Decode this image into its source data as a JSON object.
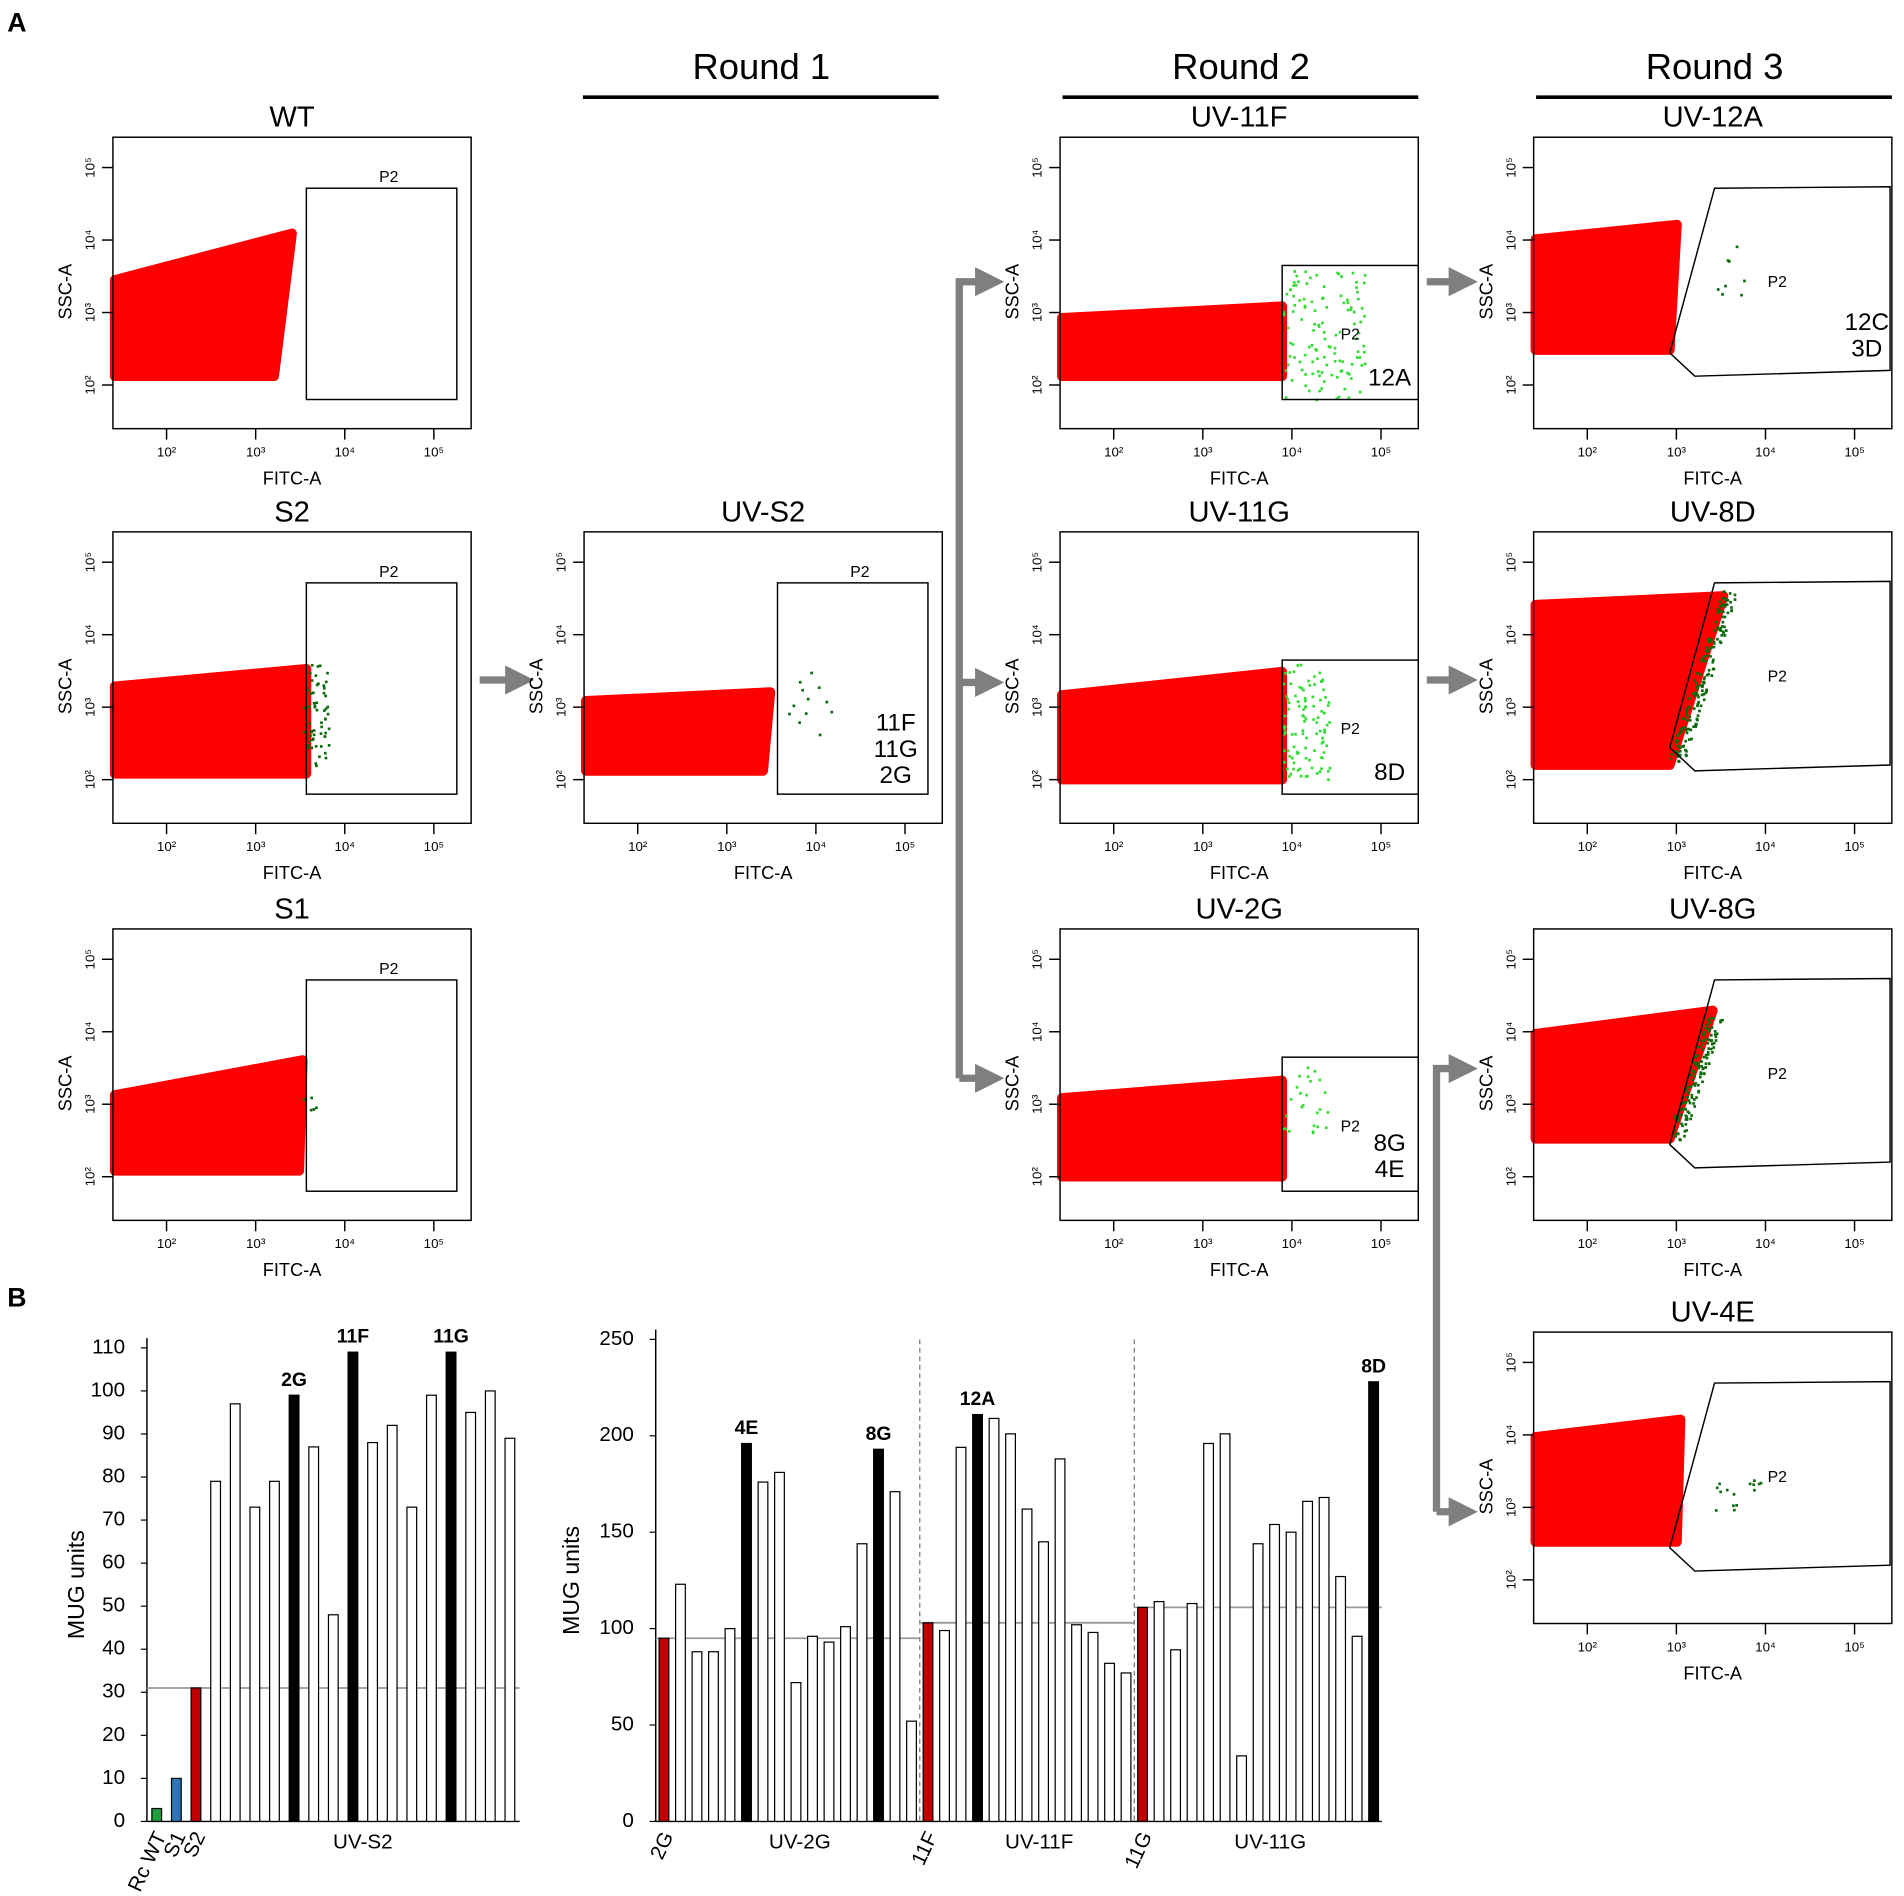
{
  "panel_labels": [
    "A",
    "B"
  ],
  "rounds": [
    "Round 1",
    "Round 2",
    "Round 3"
  ],
  "flow": {
    "xlabel": "FITC-A",
    "ylabel": "SSC-A",
    "gate_label": "P2",
    "scale": "log",
    "lim": [
      25,
      262144
    ],
    "ticks": [
      {
        "value": 100,
        "label": "10²"
      },
      {
        "value": 1000,
        "label": "10³"
      },
      {
        "value": 10000,
        "label": "10⁴"
      },
      {
        "value": 100000,
        "label": "10⁵"
      }
    ],
    "panels": [
      {
        "title": "WT"
      },
      {
        "title": "S2"
      },
      {
        "title": "S1"
      },
      {
        "title": "UV-S2",
        "annotation": [
          "11F",
          "11G",
          "2G"
        ]
      },
      {
        "title": "UV-11F",
        "annotation": [
          "12A"
        ]
      },
      {
        "title": "UV-11G",
        "annotation": [
          "8D"
        ]
      },
      {
        "title": "UV-2G",
        "annotation": [
          "8G",
          "4E"
        ]
      },
      {
        "title": "UV-12A",
        "annotation": [
          "12C",
          "3D"
        ]
      },
      {
        "title": "UV-8D"
      },
      {
        "title": "UV-8G"
      },
      {
        "title": "UV-4E"
      }
    ]
  },
  "chart_data": [
    {
      "type": "bar",
      "ylabel": "MUG units",
      "ylim": [
        0,
        110
      ],
      "yticks": [
        0,
        10,
        20,
        30,
        40,
        50,
        60,
        70,
        80,
        90,
        100,
        110
      ],
      "reference_line": 31,
      "group_label": "UV-S2",
      "categories": [
        "Rc WT",
        "S1",
        "S2",
        null,
        null,
        null,
        null,
        null,
        null,
        null,
        null,
        null,
        null,
        null,
        null,
        null,
        null,
        null,
        null
      ],
      "values": [
        3,
        10,
        31,
        79,
        97,
        73,
        79,
        99,
        87,
        48,
        109,
        88,
        92,
        73,
        99,
        109,
        95,
        100,
        89
      ],
      "colors": [
        "#1e9e3c",
        "#2e75b6",
        "#c00000",
        "#ffffff",
        "#ffffff",
        "#ffffff",
        "#ffffff",
        "#000000",
        "#ffffff",
        "#ffffff",
        "#000000",
        "#ffffff",
        "#ffffff",
        "#ffffff",
        "#ffffff",
        "#000000",
        "#ffffff",
        "#ffffff",
        "#ffffff"
      ],
      "bar_labels": [
        null,
        null,
        null,
        null,
        null,
        null,
        null,
        "2G",
        null,
        null,
        "11F",
        null,
        null,
        null,
        null,
        "11G",
        null,
        null,
        null
      ]
    },
    {
      "type": "grouped_bar",
      "ylabel": "MUG units",
      "ylim": [
        0,
        250
      ],
      "yticks": [
        0,
        50,
        100,
        150,
        200,
        250
      ],
      "groups": [
        {
          "label": "UV-2G",
          "reference_line": 95,
          "categories": [
            "2G",
            null,
            null,
            null,
            null,
            null,
            null,
            null,
            null,
            null,
            null,
            null,
            null,
            null,
            null,
            null
          ],
          "values": [
            95,
            123,
            88,
            88,
            100,
            196,
            176,
            181,
            72,
            96,
            93,
            101,
            144,
            193,
            171,
            52
          ],
          "colors": [
            "#c00000",
            "#ffffff",
            "#ffffff",
            "#ffffff",
            "#ffffff",
            "#000000",
            "#ffffff",
            "#ffffff",
            "#ffffff",
            "#ffffff",
            "#ffffff",
            "#ffffff",
            "#ffffff",
            "#000000",
            "#ffffff",
            "#ffffff"
          ],
          "bar_labels": [
            null,
            null,
            null,
            null,
            null,
            "4E",
            null,
            null,
            null,
            null,
            null,
            null,
            null,
            "8G",
            null,
            null
          ]
        },
        {
          "label": "UV-11F",
          "reference_line": 103,
          "categories": [
            "11F",
            null,
            null,
            null,
            null,
            null,
            null,
            null,
            null,
            null,
            null,
            null,
            null
          ],
          "values": [
            103,
            99,
            194,
            211,
            209,
            201,
            162,
            145,
            188,
            102,
            98,
            82,
            77
          ],
          "colors": [
            "#c00000",
            "#ffffff",
            "#ffffff",
            "#000000",
            "#ffffff",
            "#ffffff",
            "#ffffff",
            "#ffffff",
            "#ffffff",
            "#ffffff",
            "#ffffff",
            "#ffffff",
            "#ffffff"
          ],
          "bar_labels": [
            null,
            null,
            null,
            "12A",
            null,
            null,
            null,
            null,
            null,
            null,
            null,
            null,
            null
          ]
        },
        {
          "label": "UV-11G",
          "reference_line": 111,
          "categories": [
            "11G",
            null,
            null,
            null,
            null,
            null,
            null,
            null,
            null,
            null,
            null,
            null,
            null,
            null,
            null
          ],
          "values": [
            111,
            114,
            89,
            113,
            196,
            201,
            34,
            144,
            154,
            150,
            166,
            168,
            127,
            96,
            228
          ],
          "colors": [
            "#c00000",
            "#ffffff",
            "#ffffff",
            "#ffffff",
            "#ffffff",
            "#ffffff",
            "#ffffff",
            "#ffffff",
            "#ffffff",
            "#ffffff",
            "#ffffff",
            "#ffffff",
            "#ffffff",
            "#ffffff",
            "#000000"
          ],
          "bar_labels": [
            null,
            null,
            null,
            null,
            null,
            null,
            null,
            null,
            null,
            null,
            null,
            null,
            null,
            null,
            "8D"
          ]
        }
      ]
    }
  ]
}
